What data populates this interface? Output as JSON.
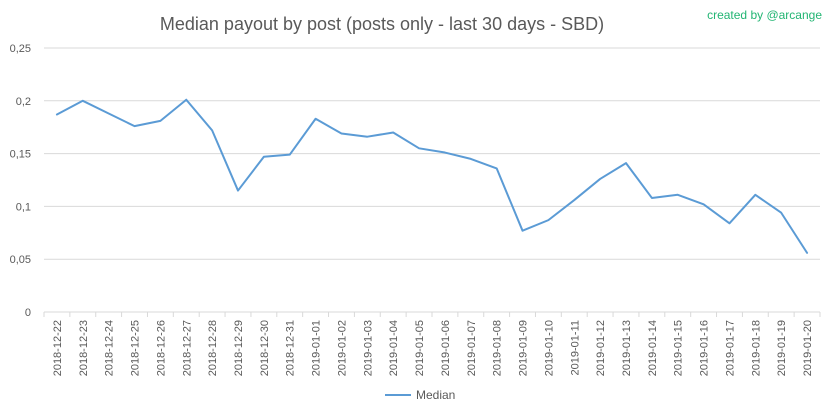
{
  "chart_data": {
    "type": "line",
    "title": "Median payout by post (posts only - last 30 days - SBD)",
    "credit": "created by @arcange",
    "x": [
      "2018-12-22",
      "2018-12-23",
      "2018-12-24",
      "2018-12-25",
      "2018-12-26",
      "2018-12-27",
      "2018-12-28",
      "2018-12-29",
      "2018-12-30",
      "2018-12-31",
      "2019-01-01",
      "2019-01-02",
      "2019-01-03",
      "2019-01-04",
      "2019-01-05",
      "2019-01-06",
      "2019-01-07",
      "2019-01-08",
      "2019-01-09",
      "2019-01-10",
      "2019-01-11",
      "2019-01-12",
      "2019-01-13",
      "2019-01-14",
      "2019-01-15",
      "2019-01-16",
      "2019-01-17",
      "2019-01-18",
      "2019-01-19",
      "2019-01-20"
    ],
    "series": [
      {
        "name": "Median",
        "color": "#5b9bd5",
        "values": [
          0.187,
          0.2,
          0.188,
          0.176,
          0.181,
          0.201,
          0.172,
          0.115,
          0.147,
          0.149,
          0.183,
          0.169,
          0.166,
          0.17,
          0.155,
          0.151,
          0.145,
          0.136,
          0.077,
          0.087,
          0.106,
          0.126,
          0.141,
          0.108,
          0.111,
          0.102,
          0.084,
          0.111,
          0.094,
          0.056
        ]
      }
    ],
    "ylim": [
      0,
      0.25
    ],
    "yticks": [
      0,
      0.05,
      0.1,
      0.15,
      0.2,
      0.25
    ],
    "ytick_labels": [
      "0",
      "0,05",
      "0,1",
      "0,15",
      "0,2",
      "0,25"
    ],
    "grid": true,
    "legend": "bottom"
  }
}
